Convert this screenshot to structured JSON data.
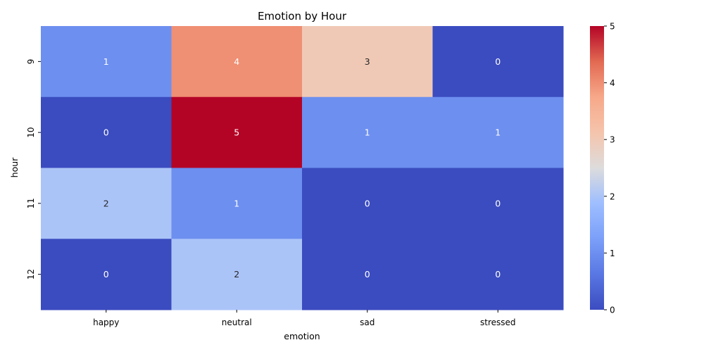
{
  "chart_data": {
    "type": "heatmap",
    "title": "Emotion by Hour",
    "xlabel": "emotion",
    "ylabel": "hour",
    "x_categories": [
      "happy",
      "neutral",
      "sad",
      "stressed"
    ],
    "y_categories": [
      "9",
      "10",
      "11",
      "12"
    ],
    "values": [
      [
        1,
        4,
        3,
        0
      ],
      [
        0,
        5,
        1,
        1
      ],
      [
        2,
        1,
        0,
        0
      ],
      [
        0,
        2,
        0,
        0
      ]
    ],
    "colormap": "coolwarm",
    "vmin": 0,
    "vmax": 5,
    "colorbar_ticks": [
      0,
      1,
      2,
      3,
      4,
      5
    ],
    "annotated": true
  }
}
